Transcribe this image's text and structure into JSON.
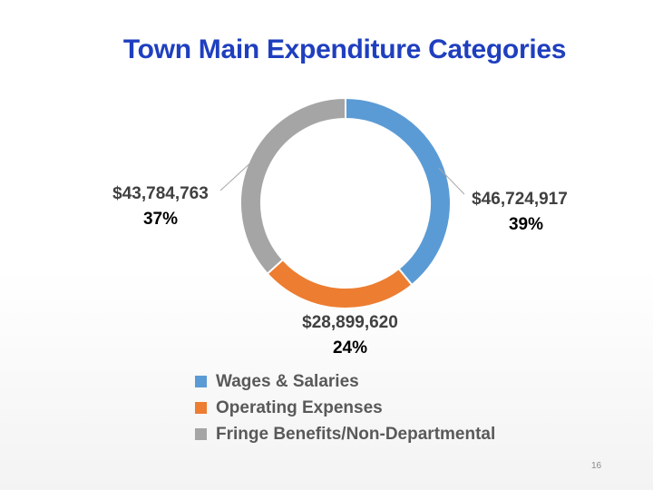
{
  "slide": {
    "page_number": "16"
  },
  "chart_data": {
    "type": "pie",
    "title": "Town Main Expenditure Categories",
    "categories": [
      "Wages & Salaries",
      "Operating Expenses",
      "Fringe Benefits/Non-Departmental"
    ],
    "values": [
      46724917,
      28899620,
      43784763
    ],
    "value_labels": [
      "$46,724,917",
      "$28,899,620",
      "$43,784,763"
    ],
    "percent_labels": [
      "39%",
      "24%",
      "37%"
    ],
    "colors": [
      "#5b9bd5",
      "#ed7d31",
      "#a5a5a5"
    ],
    "donut": true,
    "legend_position": "bottom"
  }
}
